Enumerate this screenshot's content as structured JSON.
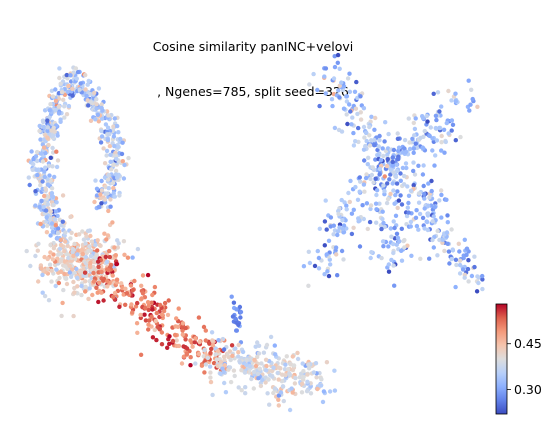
{
  "title_line1": "Cosine similarity panINC+velovi",
  "title_line2": ", Ngenes=785, split seed=326",
  "chart_data": {
    "type": "scatter",
    "title": "Cosine similarity panINC+velovi\n, Ngenes=785, split seed=326",
    "xlabel": "",
    "ylabel": "",
    "axes_visible": false,
    "colormap": "coolwarm",
    "colorbar": {
      "ticks": [
        0.3,
        0.45
      ],
      "tick_labels": [
        "0.30",
        "0.45"
      ],
      "range": [
        0.22,
        0.58
      ],
      "placement": "bottom-right"
    },
    "regions": [
      {
        "region": "upper-left branch",
        "approx_points": 620,
        "value_mean": 0.36,
        "value_spread": 0.05
      },
      {
        "region": "lower-left cluster",
        "approx_points": 380,
        "value_mean": 0.42,
        "value_spread": 0.04
      },
      {
        "region": "descending ridge",
        "approx_points": 260,
        "value_mean": 0.52,
        "value_spread": 0.04
      },
      {
        "region": "lower-right tail",
        "approx_points": 300,
        "value_mean": 0.39,
        "value_spread": 0.04
      },
      {
        "region": "small center islet",
        "approx_points": 20,
        "value_mean": 0.27,
        "value_spread": 0.02
      },
      {
        "region": "right X-shaped cluster",
        "approx_points": 650,
        "value_mean": 0.33,
        "value_spread": 0.05
      }
    ]
  }
}
